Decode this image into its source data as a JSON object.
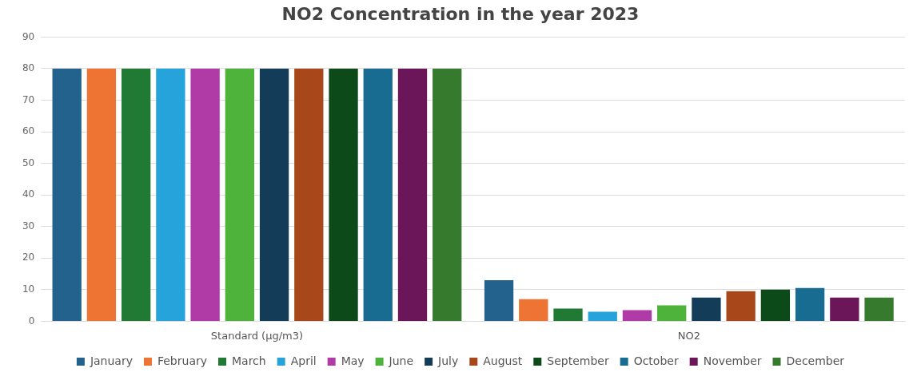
{
  "chart_data": {
    "type": "bar",
    "title": "NO2 Concentration in the year 2023",
    "categories": [
      "Standard (µg/m3)",
      "NO2"
    ],
    "series": [
      {
        "name": "January",
        "color": "#22628c",
        "values": [
          80,
          13
        ]
      },
      {
        "name": "February",
        "color": "#ed7432",
        "values": [
          80,
          7
        ]
      },
      {
        "name": "March",
        "color": "#217a33",
        "values": [
          80,
          4
        ]
      },
      {
        "name": "April",
        "color": "#27a3dc",
        "values": [
          80,
          3
        ]
      },
      {
        "name": "May",
        "color": "#b03ba6",
        "values": [
          80,
          3.5
        ]
      },
      {
        "name": "June",
        "color": "#4db33a",
        "values": [
          80,
          5
        ]
      },
      {
        "name": "July",
        "color": "#123c58",
        "values": [
          80,
          7.5
        ]
      },
      {
        "name": "August",
        "color": "#a8471a",
        "values": [
          80,
          9.5
        ]
      },
      {
        "name": "September",
        "color": "#0c4a1a",
        "values": [
          80,
          10
        ]
      },
      {
        "name": "October",
        "color": "#186b91",
        "values": [
          80,
          10.5
        ]
      },
      {
        "name": "November",
        "color": "#6a1659",
        "values": [
          80,
          7.5
        ]
      },
      {
        "name": "December",
        "color": "#367a2e",
        "values": [
          80,
          7.5
        ]
      }
    ],
    "ylim": [
      0,
      90
    ],
    "yticks": [
      0,
      10,
      20,
      30,
      40,
      50,
      60,
      70,
      80,
      90
    ],
    "grid": "y",
    "legend": "bottom"
  }
}
